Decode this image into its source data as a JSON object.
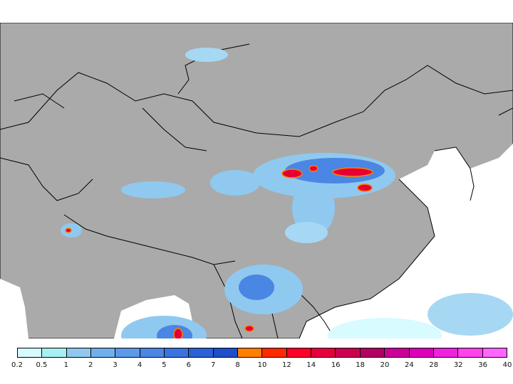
{
  "map": {
    "background_color": "#aaaaaa",
    "land_mask_color": "#aaaaaa",
    "border_color": "#000000",
    "ocean_fill_color": "#ffffff"
  },
  "legend": {
    "ticks": [
      "0.2",
      "0.5",
      "1",
      "2",
      "3",
      "4",
      "5",
      "6",
      "7",
      "8",
      "10",
      "12",
      "14",
      "16",
      "18",
      "20",
      "24",
      "28",
      "32",
      "36",
      "40"
    ],
    "colors": [
      "#d7fbff",
      "#a6f0f4",
      "#8fc9ef",
      "#6fb0ec",
      "#5c99e8",
      "#4a86e3",
      "#3b73de",
      "#2c60d6",
      "#1e4fc8",
      "#ff7f00",
      "#ff2a00",
      "#ff002a",
      "#e6003c",
      "#cc0050",
      "#b30064",
      "#cc0099",
      "#dd00bb",
      "#ee22dd",
      "#ff44ee",
      "#ff66ff"
    ]
  },
  "precip_cells": [
    {
      "level": "heavy",
      "color": "#e60032",
      "outline": "#ff7f00"
    },
    {
      "level": "moderate",
      "color": "#4a86e3"
    },
    {
      "level": "light",
      "color": "#a6d8f4"
    }
  ]
}
